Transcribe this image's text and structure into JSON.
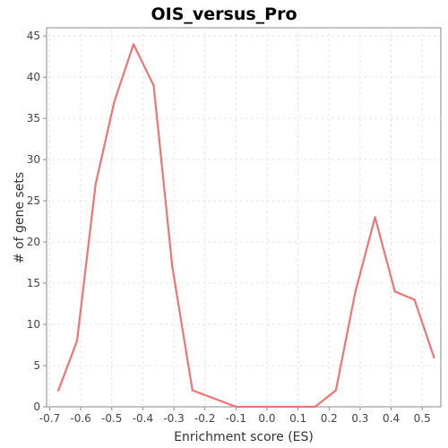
{
  "chart_data": {
    "type": "line",
    "title": "OIS_versus_Pro",
    "xlabel": "Enrichment score (ES)",
    "ylabel": "# of gene sets",
    "xlim": [
      -0.71,
      0.56
    ],
    "ylim": [
      0,
      46
    ],
    "x_ticks": [
      -0.7,
      -0.6,
      -0.5,
      -0.4,
      -0.3,
      -0.2,
      -0.1,
      0.0,
      0.1,
      0.2,
      0.3,
      0.4,
      0.5
    ],
    "x_tick_labels": [
      "-0.7",
      "-0.6",
      "-0.5",
      "-0.4",
      "-0.3",
      "-0.2",
      "-0.1",
      "0.0",
      "0.1",
      "0.2",
      "0.3",
      "0.4",
      "0.5"
    ],
    "y_ticks": [
      0,
      5,
      10,
      15,
      20,
      25,
      30,
      35,
      40,
      45
    ],
    "y_tick_labels": [
      "0",
      "5",
      "10",
      "15",
      "20",
      "25",
      "30",
      "35",
      "40",
      "45"
    ],
    "grid": true,
    "series": [
      {
        "color": "#f07377",
        "x": [
          -0.672,
          -0.612,
          -0.552,
          -0.492,
          -0.43,
          -0.365,
          -0.305,
          -0.24,
          -0.1,
          0.04,
          0.155,
          0.222,
          0.285,
          0.348,
          0.412,
          0.475,
          0.538
        ],
        "y": [
          2,
          8,
          27,
          37,
          44,
          39,
          17,
          2,
          0,
          0,
          0,
          2,
          14,
          23,
          14,
          13,
          6
        ]
      }
    ]
  }
}
